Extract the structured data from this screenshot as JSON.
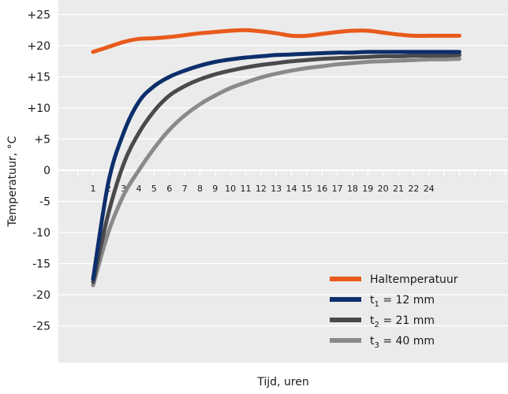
{
  "chart_data": {
    "type": "line",
    "xlabel": "Tijd, uren",
    "ylabel": "Temperatuur, °C",
    "xlim": [
      0,
      25
    ],
    "ylim": [
      -30,
      25
    ],
    "x_ticks": [
      "1",
      "2",
      "3",
      "4",
      "5",
      "6",
      "7",
      "8",
      "9",
      "10",
      "11",
      "12",
      "13",
      "14",
      "15",
      "16",
      "17",
      "18",
      "19",
      "20",
      "21",
      "22",
      "24"
    ],
    "y_ticks": [
      {
        "value": 25,
        "label": "+25"
      },
      {
        "value": 20,
        "label": "+20"
      },
      {
        "value": 15,
        "label": "+15"
      },
      {
        "value": 10,
        "label": "+10"
      },
      {
        "value": 5,
        "label": "+5"
      },
      {
        "value": 0,
        "label": "0"
      },
      {
        "value": -5,
        "label": "-5"
      },
      {
        "value": -10,
        "label": "-10"
      },
      {
        "value": -15,
        "label": "-15"
      },
      {
        "value": -20,
        "label": "-20"
      },
      {
        "value": -25,
        "label": "-25"
      }
    ],
    "grid": true,
    "legend_position": "bottom-right",
    "series": [
      {
        "name": "Haltemperatuur",
        "color": "#e85a1b",
        "x": [
          1,
          2,
          3,
          4,
          5,
          6,
          7,
          8,
          9,
          10,
          11,
          12,
          13,
          14,
          15,
          16,
          17,
          18,
          19,
          20,
          21,
          22,
          23,
          24,
          25
        ],
        "values": [
          19,
          19.8,
          20.6,
          21.1,
          21.2,
          21.4,
          21.7,
          22.0,
          22.2,
          22.4,
          22.5,
          22.3,
          22.0,
          21.6,
          21.6,
          21.9,
          22.2,
          22.4,
          22.4,
          22.1,
          21.8,
          21.6,
          21.6,
          21.6,
          21.6
        ]
      },
      {
        "name": "t1 = 12 mm",
        "color": "#0c2f6b",
        "x": [
          1,
          2,
          3,
          4,
          5,
          6,
          7,
          8,
          9,
          10,
          11,
          12,
          13,
          14,
          15,
          16,
          17,
          18,
          19,
          20,
          21,
          22,
          23,
          24,
          25
        ],
        "values": [
          -17.5,
          -2,
          6,
          11,
          13.5,
          15,
          16,
          16.8,
          17.4,
          17.8,
          18.1,
          18.3,
          18.5,
          18.6,
          18.7,
          18.8,
          18.9,
          18.9,
          19.0,
          19.0,
          19.0,
          19.0,
          19.0,
          19.0,
          19.0
        ]
      },
      {
        "name": "t2 = 21 mm",
        "color": "#4a4a4d",
        "x": [
          1,
          2,
          3,
          4,
          5,
          6,
          7,
          8,
          9,
          10,
          11,
          12,
          13,
          14,
          15,
          16,
          17,
          18,
          19,
          20,
          21,
          22,
          23,
          24,
          25
        ],
        "values": [
          -18,
          -7,
          1,
          6,
          9.5,
          12,
          13.5,
          14.6,
          15.4,
          16,
          16.5,
          16.9,
          17.2,
          17.5,
          17.7,
          17.9,
          18.0,
          18.1,
          18.2,
          18.3,
          18.3,
          18.4,
          18.4,
          18.4,
          18.5
        ]
      },
      {
        "name": "t3 = 40 mm",
        "color": "#8a8a8c",
        "x": [
          1,
          2,
          3,
          4,
          5,
          6,
          7,
          8,
          9,
          10,
          11,
          12,
          13,
          14,
          15,
          16,
          17,
          18,
          19,
          20,
          21,
          22,
          23,
          24,
          25
        ],
        "values": [
          -18.5,
          -10,
          -4,
          0,
          3.5,
          6.5,
          8.8,
          10.6,
          12,
          13.2,
          14.1,
          14.9,
          15.5,
          16,
          16.4,
          16.7,
          17.0,
          17.2,
          17.4,
          17.5,
          17.6,
          17.7,
          17.8,
          17.8,
          17.9
        ]
      }
    ],
    "legend": [
      {
        "label": "Haltemperatuur",
        "sym": "",
        "sub": "",
        "rest": ""
      },
      {
        "label": "",
        "sym": "t",
        "sub": "1",
        "rest": " = 12 mm"
      },
      {
        "label": "",
        "sym": "t",
        "sub": "2",
        "rest": " = 21 mm"
      },
      {
        "label": "",
        "sym": "t",
        "sub": "3",
        "rest": " = 40 mm"
      }
    ]
  }
}
